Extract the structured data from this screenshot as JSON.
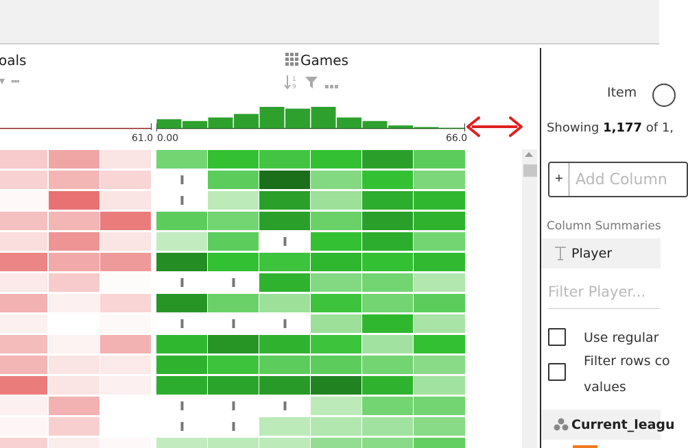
{
  "columns": {
    "goals": {
      "title": "oals",
      "max_label": "61.0"
    },
    "games": {
      "title": "Games",
      "min_label": "0.00",
      "max_label": "66.0",
      "histogram": [
        5,
        4,
        6,
        8,
        12,
        11,
        12,
        6,
        4,
        1.5,
        0.6,
        0.2
      ]
    }
  },
  "icons": {
    "games_type": "grid-icon",
    "sort": "sort-numeric-icon",
    "filter": "filter-icon",
    "more": "more-icon",
    "resize": "resize-arrow-icon",
    "text_type": "text-type-icon",
    "category_type": "category-type-icon"
  },
  "colors": {
    "goals_scale": "#e86a6a",
    "games_scale": "#1a6b1a",
    "histogram_bar": "#2ea02e",
    "resize_arrow": "#e02020",
    "accent_orange": "#f07a20"
  },
  "heatmap": {
    "goals_rows": [
      [
        0.35,
        0.6,
        0.18
      ],
      [
        0.3,
        0.5,
        0.28
      ],
      [
        0.05,
        0.95,
        0.18
      ],
      [
        0.42,
        0.5,
        0.88
      ],
      [
        0.22,
        0.72,
        0.18
      ],
      [
        0.82,
        0.58,
        0.68
      ],
      [
        0.15,
        0.35,
        0.03
      ],
      [
        0.52,
        0.1,
        0.28
      ],
      [
        0.1,
        0.0,
        0.04
      ],
      [
        0.45,
        0.08,
        0.52
      ],
      [
        0.5,
        0.18,
        0.15
      ],
      [
        0.88,
        0.18,
        0.1
      ],
      [
        0.1,
        0.52,
        0.0
      ],
      [
        0.06,
        0.32,
        0.0
      ],
      [
        0.3,
        0.12,
        0.05
      ]
    ],
    "games_rows": [
      [
        0.35,
        0.55,
        0.5,
        0.55,
        0.72,
        0.42
      ],
      [
        null,
        0.42,
        0.98,
        0.3,
        0.55,
        0.32
      ],
      [
        null,
        0.12,
        0.72,
        0.22,
        0.65,
        0.6
      ],
      [
        0.42,
        0.35,
        0.72,
        0.38,
        0.72,
        0.62
      ],
      [
        0.1,
        0.42,
        null,
        0.55,
        0.65,
        0.35
      ],
      [
        0.82,
        0.55,
        0.52,
        0.6,
        0.55,
        0.58
      ],
      [
        null,
        null,
        0.62,
        0.3,
        0.35,
        0.15
      ],
      [
        0.78,
        0.38,
        0.22,
        0.52,
        0.35,
        0.42
      ],
      [
        null,
        null,
        null,
        0.22,
        0.6,
        0.18
      ],
      [
        0.6,
        0.78,
        0.62,
        0.52,
        0.2,
        0.55
      ],
      [
        0.62,
        0.52,
        0.42,
        0.42,
        0.35,
        0.28
      ],
      [
        0.65,
        0.7,
        0.75,
        0.88,
        0.62,
        0.2
      ],
      [
        null,
        null,
        null,
        0.12,
        0.35,
        0.35
      ],
      [
        null,
        null,
        0.12,
        0.15,
        0.2,
        0.28
      ],
      [
        0.1,
        0.12,
        0.12,
        0.25,
        0.28,
        0.4
      ]
    ]
  },
  "panel": {
    "item_label": "Item",
    "showing_prefix": "Showing ",
    "showing_count": "1,177",
    "showing_suffix": " of 1,",
    "add_columns_placeholder": "Add Column",
    "column_summaries_label": "Column Summaries",
    "player_section": "Player",
    "filter_player_placeholder": "Filter Player...",
    "use_regular_label": "Use regular",
    "filter_rows_label_1": "Filter rows co",
    "filter_rows_label_2": "values",
    "current_league_section": "Current_leagu"
  }
}
